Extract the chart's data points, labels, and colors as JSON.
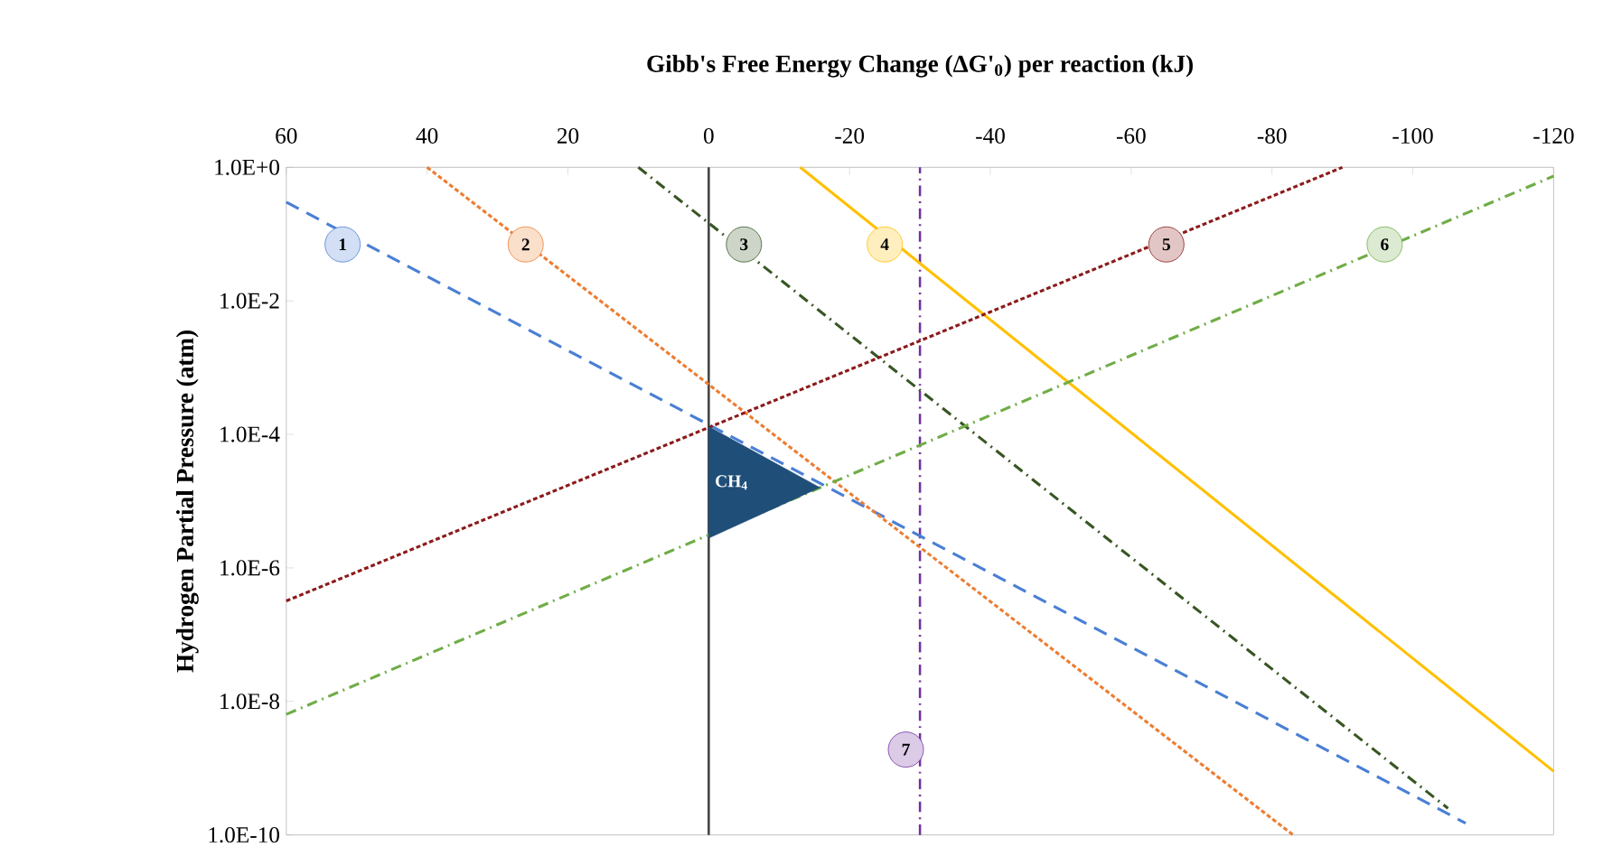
{
  "chart_data": {
    "type": "line",
    "xlabel": "Gibb's Free Energy Change (ΔG'$_{0}$) per reaction (kJ)",
    "ylabel": "Hydrogen Partial Pressure (atm)",
    "log": "y",
    "grid": false,
    "xlim": [
      60,
      -120
    ],
    "xticks": [
      60,
      40,
      20,
      0,
      -20,
      -40,
      -60,
      -80,
      -100,
      -120
    ],
    "ylim": [
      1e-10,
      1
    ],
    "yticks": [
      {
        "value": 1,
        "label": "1.0E+0"
      },
      {
        "value": 0.01,
        "label": "1.0E-2"
      },
      {
        "value": 0.0001,
        "label": "1.0E-4"
      },
      {
        "value": 1e-06,
        "label": "1.0E-6"
      },
      {
        "value": 1e-08,
        "label": "1.0E-8"
      },
      {
        "value": 1e-10,
        "label": "1.0E-10"
      }
    ],
    "series": [
      {
        "color": "#4a7fd4",
        "line_style": "dashed",
        "x": [
          60,
          -107.5
        ],
        "values": [
          0.3,
          1.5e-10
        ]
      },
      {
        "color": "#ed7d31",
        "line_style": "dotted",
        "x": [
          40,
          -83
        ],
        "values": [
          1,
          1e-10
        ]
      },
      {
        "color": "#375623",
        "line_style": "dashdot",
        "x": [
          10,
          -105
        ],
        "values": [
          1,
          2.5e-10
        ]
      },
      {
        "color": "#ffc000",
        "line_style": "solid",
        "x": [
          -13,
          -120
        ],
        "values": [
          1,
          9e-10
        ]
      },
      {
        "color": "#8b1a1a",
        "line_style": "dotted",
        "x": [
          60,
          -90
        ],
        "values": [
          3.2e-07,
          1
        ]
      },
      {
        "color": "#70ad47",
        "line_style": "dashdot",
        "x": [
          60,
          -120
        ],
        "values": [
          6.4e-09,
          0.74
        ]
      },
      {
        "type": "area",
        "name": "CH$_{4}$",
        "color": "#1f4e79",
        "x": [
          0,
          -15.75,
          0
        ],
        "values": [
          0.00013,
          1.6e-05,
          2.8e-06
        ]
      }
    ],
    "ref_lines": [
      {
        "axis": "x",
        "value": 0,
        "color": "#404040",
        "line_style": "solid"
      },
      {
        "axis": "x",
        "value": -30,
        "color": "#7030a0",
        "line_style": "dashdot"
      }
    ],
    "annotations": [
      {
        "text": "1",
        "x": 52,
        "y": 0.07
      },
      {
        "text": "2",
        "x": 26,
        "y": 0.07
      },
      {
        "text": "3",
        "x": -5,
        "y": 0.07
      },
      {
        "text": "4",
        "x": -25,
        "y": 0.07
      },
      {
        "text": "5",
        "x": -65,
        "y": 0.07
      },
      {
        "text": "6",
        "x": -96,
        "y": 0.07
      },
      {
        "text": "7",
        "x": -28,
        "y": 1.9e-09
      }
    ]
  }
}
